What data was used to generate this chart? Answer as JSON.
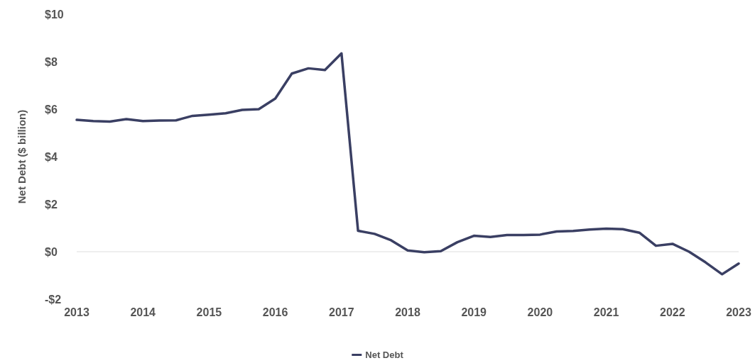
{
  "chart_data": {
    "type": "line",
    "ylabel": "Net Debt ($ billion)",
    "x": [
      2013,
      2013.25,
      2013.5,
      2013.75,
      2014,
      2014.25,
      2014.5,
      2014.75,
      2015,
      2015.25,
      2015.5,
      2015.75,
      2016,
      2016.25,
      2016.5,
      2016.75,
      2017,
      2017.25,
      2017.5,
      2017.75,
      2018,
      2018.25,
      2018.5,
      2018.75,
      2019,
      2019.25,
      2019.5,
      2019.75,
      2020,
      2020.25,
      2020.5,
      2020.75,
      2021,
      2021.25,
      2021.5,
      2021.75,
      2022,
      2022.25,
      2022.5,
      2022.75,
      2023
    ],
    "series": [
      {
        "name": "Net Debt",
        "color": "#3a3f63",
        "values": [
          5.55,
          5.5,
          5.48,
          5.58,
          5.5,
          5.52,
          5.53,
          5.72,
          5.77,
          5.83,
          5.97,
          6.0,
          6.45,
          7.5,
          7.72,
          7.65,
          8.35,
          0.88,
          0.75,
          0.48,
          0.05,
          -0.02,
          0.02,
          0.4,
          0.67,
          0.62,
          0.7,
          0.7,
          0.72,
          0.85,
          0.87,
          0.93,
          0.97,
          0.95,
          0.8,
          0.25,
          0.33,
          0.0,
          -0.45,
          -0.95,
          -0.5
        ]
      }
    ],
    "xlim": [
      2013,
      2023
    ],
    "xticks": [
      2013,
      2014,
      2015,
      2016,
      2017,
      2018,
      2019,
      2020,
      2021,
      2022,
      2023
    ],
    "ylim": [
      -2,
      10
    ],
    "yticks": [
      {
        "value": -2,
        "label": "-$2"
      },
      {
        "value": 0,
        "label": "$0"
      },
      {
        "value": 2,
        "label": "$2"
      },
      {
        "value": 4,
        "label": "$4"
      },
      {
        "value": 6,
        "label": "$6"
      },
      {
        "value": 8,
        "label": "$8"
      },
      {
        "value": 10,
        "label": "$10"
      }
    ],
    "ref_lines": [
      {
        "axis": "y",
        "value": 0,
        "color": "#e8e8e8"
      }
    ],
    "grid": false,
    "legend": "bottom",
    "marker": "none",
    "line_style": "solid"
  }
}
